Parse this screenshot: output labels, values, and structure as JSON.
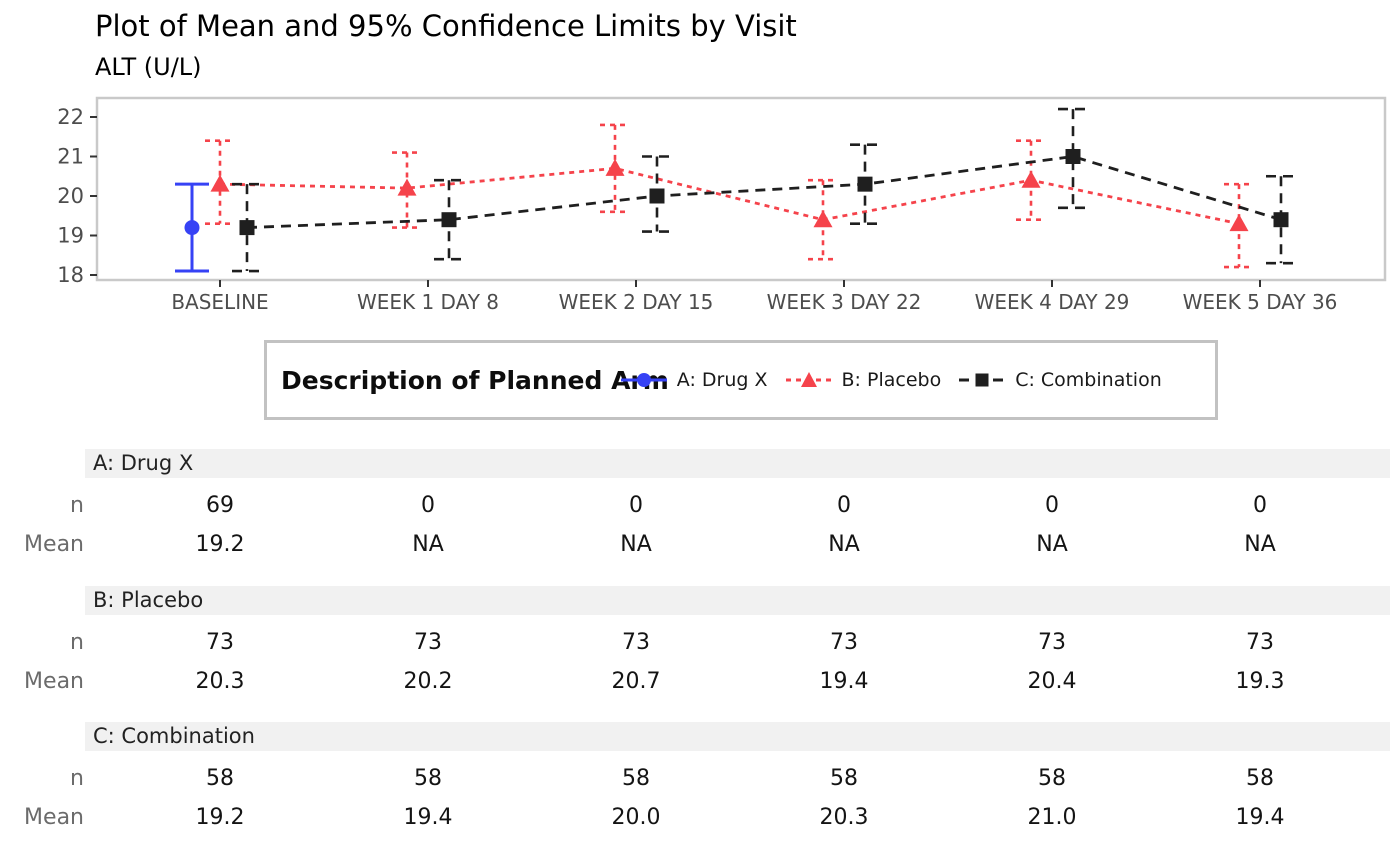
{
  "header": {
    "title": "Plot of Mean and 95% Confidence Limits by Visit",
    "subtitle": "ALT (U/L)"
  },
  "chart_data": {
    "type": "line",
    "title": "Plot of Mean and 95% Confidence Limits by Visit",
    "subtitle": "ALT (U/L)",
    "ylabel": "ALT (U/L)",
    "categories": [
      "BASELINE",
      "WEEK 1 DAY 8",
      "WEEK 2 DAY 15",
      "WEEK 3 DAY 22",
      "WEEK 4 DAY 29",
      "WEEK 5 DAY 36"
    ],
    "y_ticks": [
      18,
      19,
      20,
      21,
      22
    ],
    "ylim": [
      17.85,
      22.55
    ],
    "grid": false,
    "legend": {
      "title": "Description of Planned Arm",
      "position": "bottom"
    },
    "series": [
      {
        "name": "A: Drug X",
        "color": "#3642f5",
        "marker": "circle",
        "line_style": "solid",
        "mean": [
          19.2,
          null,
          null,
          null,
          null,
          null
        ],
        "ci_low": [
          18.1,
          null,
          null,
          null,
          null,
          null
        ],
        "ci_high": [
          20.3,
          null,
          null,
          null,
          null,
          null
        ]
      },
      {
        "name": "B: Placebo",
        "color": "#f5434b",
        "marker": "triangle",
        "line_style": "dashed",
        "mean": [
          20.3,
          20.2,
          20.7,
          19.4,
          20.4,
          19.3
        ],
        "ci_low": [
          19.3,
          19.2,
          19.6,
          18.4,
          19.4,
          18.2
        ],
        "ci_high": [
          21.4,
          21.1,
          21.8,
          20.4,
          21.4,
          20.3
        ]
      },
      {
        "name": "C: Combination",
        "color": "#1f1f1f",
        "marker": "square",
        "line_style": "dashed",
        "mean": [
          19.2,
          19.4,
          20.0,
          20.3,
          21.0,
          19.4
        ],
        "ci_low": [
          18.1,
          18.4,
          19.1,
          19.3,
          19.7,
          18.3
        ],
        "ci_high": [
          20.3,
          20.4,
          21.0,
          21.3,
          22.2,
          20.5
        ]
      }
    ]
  },
  "table": {
    "sections": [
      {
        "label": "A: Drug X",
        "rows": [
          {
            "label": "n",
            "values": [
              "69",
              "0",
              "0",
              "0",
              "0",
              "0"
            ]
          },
          {
            "label": "Mean",
            "values": [
              "19.2",
              "NA",
              "NA",
              "NA",
              "NA",
              "NA"
            ]
          }
        ]
      },
      {
        "label": "B: Placebo",
        "rows": [
          {
            "label": "n",
            "values": [
              "73",
              "73",
              "73",
              "73",
              "73",
              "73"
            ]
          },
          {
            "label": "Mean",
            "values": [
              "20.3",
              "20.2",
              "20.7",
              "19.4",
              "20.4",
              "19.3"
            ]
          }
        ]
      },
      {
        "label": "C: Combination",
        "rows": [
          {
            "label": "n",
            "values": [
              "58",
              "58",
              "58",
              "58",
              "58",
              "58"
            ]
          },
          {
            "label": "Mean",
            "values": [
              "19.2",
              "19.4",
              "20.0",
              "20.3",
              "21.0",
              "19.4"
            ]
          }
        ]
      }
    ]
  },
  "colors": {
    "arm_a": "#3642f5",
    "arm_b": "#f5434b",
    "arm_c": "#1f1f1f",
    "axis_text": "#4d4d4d",
    "panel_border": "#c9c9c9",
    "legend_border": "#c2c2c2",
    "section_band": "#f1f1f1",
    "row_label": "#6b6b6b"
  }
}
